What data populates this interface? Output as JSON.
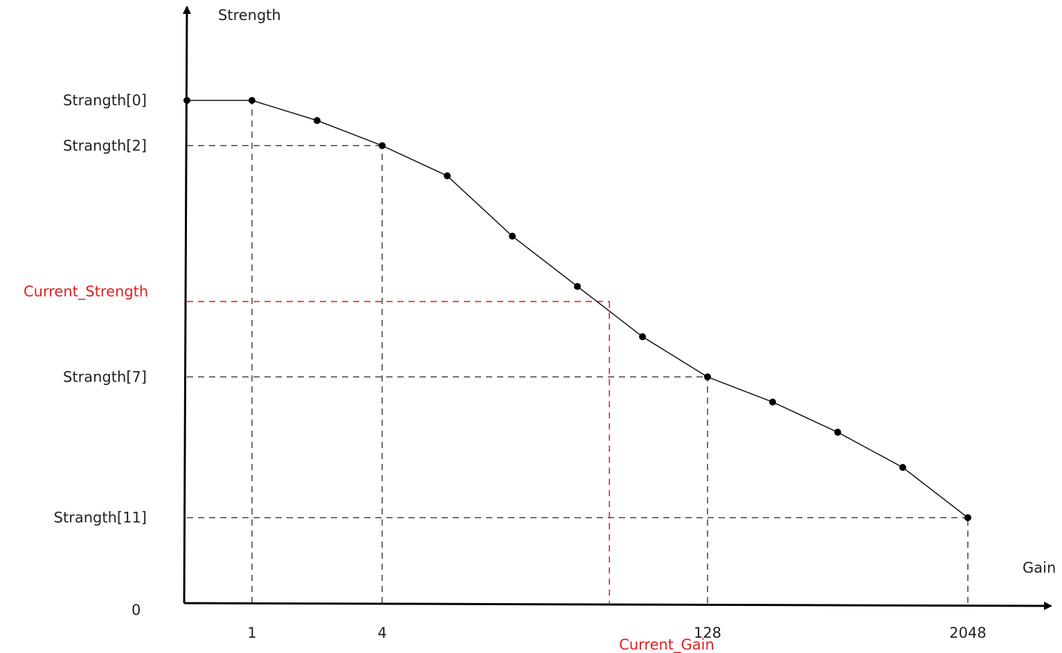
{
  "chart_data": {
    "type": "line",
    "xlabel": "Gain",
    "ylabel": "Strength",
    "origin_label": "0",
    "x_scale": "log2",
    "x_ticks": [
      {
        "label": "1",
        "value": 1
      },
      {
        "label": "4",
        "value": 4
      },
      {
        "label": "128",
        "value": 128
      },
      {
        "label": "2048",
        "value": 2048
      }
    ],
    "y_ticks": [
      {
        "label": "Strangth[0]",
        "value": 1.0
      },
      {
        "label": "Strangth[2]",
        "value": 0.91
      },
      {
        "label": "Strangth[7]",
        "value": 0.45
      },
      {
        "label": "Strangth[11]",
        "value": 0.17
      }
    ],
    "x_range": [
      0.25,
      4096
    ],
    "y_range": [
      0,
      1.1
    ],
    "series": [
      {
        "color": "#111111",
        "points": [
          {
            "x": 0.5,
            "y": 1.0
          },
          {
            "x": 1,
            "y": 1.0
          },
          {
            "x": 2,
            "y": 0.96
          },
          {
            "x": 4,
            "y": 0.91
          },
          {
            "x": 8,
            "y": 0.85
          },
          {
            "x": 16,
            "y": 0.73
          },
          {
            "x": 32,
            "y": 0.63
          },
          {
            "x": 64,
            "y": 0.53
          },
          {
            "x": 128,
            "y": 0.45
          },
          {
            "x": 256,
            "y": 0.4
          },
          {
            "x": 512,
            "y": 0.34
          },
          {
            "x": 1024,
            "y": 0.27
          },
          {
            "x": 2048,
            "y": 0.17
          }
        ]
      }
    ],
    "reference_lines_color": "#333333",
    "highlight": {
      "x_label": "Current_Gain",
      "y_label": "Current_Strength",
      "x": 45,
      "y": 0.6,
      "color": "#e02020"
    }
  }
}
